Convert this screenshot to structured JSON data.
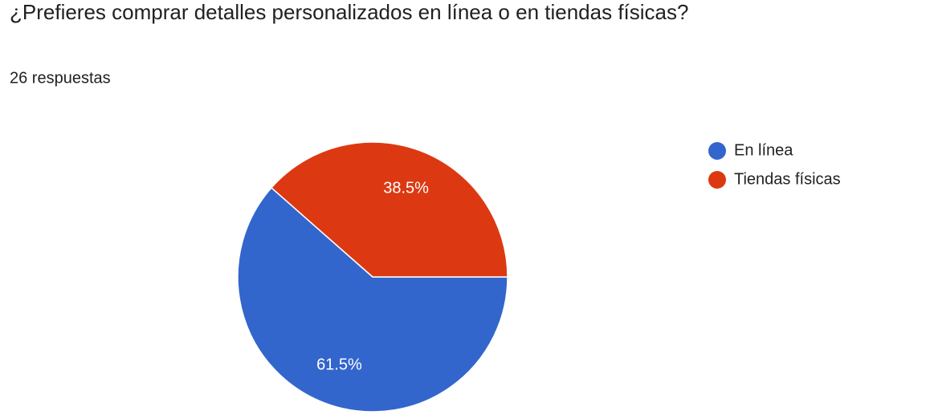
{
  "chart_data": {
    "type": "pie",
    "title": "¿Prefieres comprar detalles personalizados en línea o en tiendas físicas?",
    "subtitle": "26 respuestas",
    "categories": [
      "En línea",
      "Tiendas físicas"
    ],
    "values": [
      61.5,
      38.5
    ],
    "value_labels": [
      "61.5%",
      "38.5%"
    ],
    "colors": [
      "#3366cc",
      "#dc3912"
    ],
    "legend": "right"
  }
}
